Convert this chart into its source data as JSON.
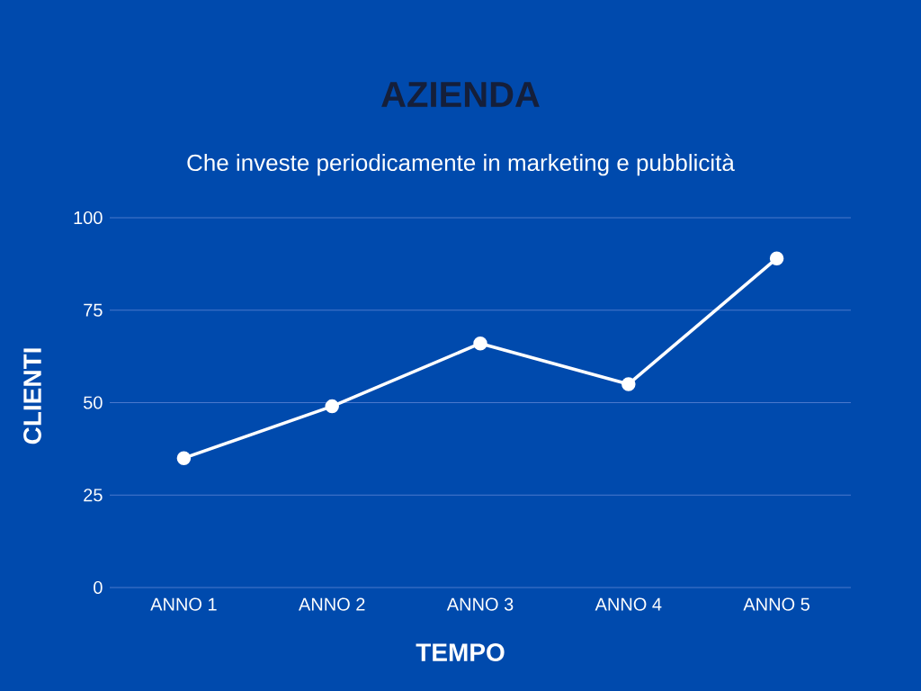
{
  "chart_data": {
    "type": "line",
    "title": "AZIENDA",
    "subtitle": "Che investe periodicamente in marketing e pubblicità",
    "xlabel": "TEMPO",
    "ylabel": "CLIENTI",
    "categories": [
      "ANNO 1",
      "ANNO 2",
      "ANNO 3",
      "ANNO 4",
      "ANNO 5"
    ],
    "series": [
      {
        "color": "#ffffff",
        "values": [
          35,
          49,
          66,
          55,
          89
        ]
      }
    ],
    "ylim": [
      0,
      100
    ],
    "yticks": [
      0,
      25,
      50,
      75,
      100
    ],
    "grid": "y",
    "marker": "circle",
    "line_style": "solid"
  }
}
